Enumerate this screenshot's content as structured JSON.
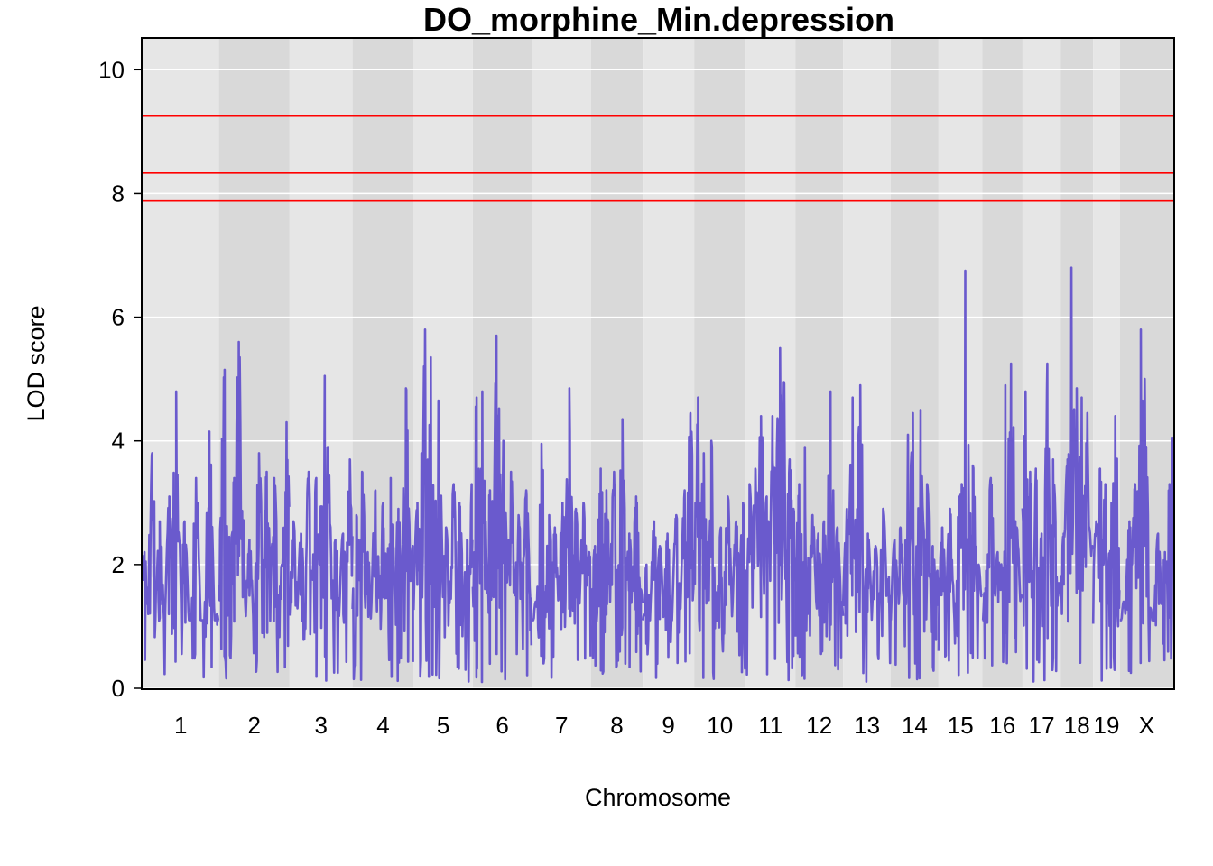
{
  "chart_data": {
    "type": "line",
    "title": "DO_morphine_Min.depression",
    "xlabel": "Chromosome",
    "ylabel": "LOD score",
    "ylim": [
      0,
      10.5
    ],
    "yticks": [
      0,
      2,
      4,
      6,
      8,
      10
    ],
    "grid": true,
    "thresholds": [
      9.25,
      8.33,
      7.88
    ],
    "colors": {
      "line": "#6a5acd",
      "threshold": "#ff0000",
      "band_light": "#e6e6e6",
      "band_dark": "#d9d9d9",
      "grid": "#ffffff"
    },
    "chromosomes": [
      {
        "label": "1",
        "start": 0,
        "end": 200,
        "peaks": [
          [
            5,
            2.2
          ],
          [
            15,
            1.2
          ],
          [
            25,
            3.8
          ],
          [
            45,
            2.7
          ],
          [
            70,
            3.1
          ],
          [
            88,
            4.8
          ],
          [
            110,
            2.7
          ],
          [
            140,
            3.4
          ],
          [
            175,
            4.15
          ],
          [
            195,
            1.2
          ]
        ]
      },
      {
        "label": "2",
        "start": 200,
        "end": 385,
        "peaks": [
          [
            15,
            5.15
          ],
          [
            40,
            3.4
          ],
          [
            52,
            5.6
          ],
          [
            80,
            2.4
          ],
          [
            105,
            3.8
          ],
          [
            125,
            3.5
          ],
          [
            145,
            3.4
          ],
          [
            165,
            2.0
          ],
          [
            177,
            4.3
          ]
        ]
      },
      {
        "label": "3",
        "start": 385,
        "end": 550,
        "peaks": [
          [
            10,
            2.7
          ],
          [
            30,
            2.5
          ],
          [
            50,
            3.5
          ],
          [
            70,
            3.4
          ],
          [
            92,
            5.05
          ],
          [
            100,
            3.9
          ],
          [
            120,
            2.4
          ],
          [
            140,
            2.5
          ],
          [
            158,
            3.7
          ]
        ]
      },
      {
        "label": "4",
        "start": 550,
        "end": 710,
        "peaks": [
          [
            10,
            2.8
          ],
          [
            25,
            3.5
          ],
          [
            40,
            2.2
          ],
          [
            60,
            3.2
          ],
          [
            80,
            3.0
          ],
          [
            100,
            3.4
          ],
          [
            120,
            2.9
          ],
          [
            140,
            4.85
          ],
          [
            158,
            2.3
          ]
        ]
      },
      {
        "label": "5",
        "start": 710,
        "end": 865,
        "peaks": [
          [
            10,
            3.0
          ],
          [
            30,
            5.8
          ],
          [
            45,
            5.35
          ],
          [
            65,
            4.65
          ],
          [
            85,
            2.6
          ],
          [
            105,
            3.3
          ],
          [
            120,
            3.0
          ],
          [
            140,
            2.4
          ],
          [
            152,
            3.3
          ]
        ]
      },
      {
        "label": "6",
        "start": 865,
        "end": 1020,
        "peaks": [
          [
            10,
            4.7
          ],
          [
            25,
            4.8
          ],
          [
            45,
            3.2
          ],
          [
            62,
            5.7
          ],
          [
            80,
            4.0
          ],
          [
            100,
            3.5
          ],
          [
            120,
            2.8
          ],
          [
            140,
            3.2
          ],
          [
            150,
            1.5
          ]
        ]
      },
      {
        "label": "7",
        "start": 1020,
        "end": 1175,
        "peaks": [
          [
            10,
            1.4
          ],
          [
            25,
            3.95
          ],
          [
            45,
            2.8
          ],
          [
            60,
            2.6
          ],
          [
            80,
            3.0
          ],
          [
            98,
            4.85
          ],
          [
            115,
            2.9
          ],
          [
            135,
            3.0
          ],
          [
            150,
            2.2
          ]
        ]
      },
      {
        "label": "8",
        "start": 1175,
        "end": 1310,
        "peaks": [
          [
            10,
            2.3
          ],
          [
            25,
            3.55
          ],
          [
            40,
            3.2
          ],
          [
            60,
            3.5
          ],
          [
            82,
            4.35
          ],
          [
            100,
            2.5
          ],
          [
            118,
            3.1
          ],
          [
            130,
            1.6
          ]
        ]
      },
      {
        "label": "9",
        "start": 1310,
        "end": 1445,
        "peaks": [
          [
            10,
            2.0
          ],
          [
            30,
            2.7
          ],
          [
            45,
            2.3
          ],
          [
            65,
            2.5
          ],
          [
            88,
            2.8
          ],
          [
            110,
            3.2
          ],
          [
            125,
            4.45
          ],
          [
            133,
            1.6
          ]
        ]
      },
      {
        "label": "10",
        "start": 1445,
        "end": 1580,
        "peaks": [
          [
            10,
            4.7
          ],
          [
            25,
            3.8
          ],
          [
            45,
            4.0
          ],
          [
            70,
            2.6
          ],
          [
            88,
            3.1
          ],
          [
            110,
            2.7
          ],
          [
            128,
            3.0
          ]
        ]
      },
      {
        "label": "11",
        "start": 1580,
        "end": 1710,
        "peaks": [
          [
            10,
            3.3
          ],
          [
            25,
            3.55
          ],
          [
            40,
            4.4
          ],
          [
            55,
            3.1
          ],
          [
            70,
            4.4
          ],
          [
            90,
            5.5
          ],
          [
            100,
            4.95
          ],
          [
            115,
            3.7
          ],
          [
            125,
            2.9
          ]
        ]
      },
      {
        "label": "12",
        "start": 1710,
        "end": 1835,
        "peaks": [
          [
            10,
            3.3
          ],
          [
            25,
            3.9
          ],
          [
            45,
            2.8
          ],
          [
            60,
            2.5
          ],
          [
            75,
            2.7
          ],
          [
            92,
            4.8
          ],
          [
            110,
            2.6
          ],
          [
            120,
            1.4
          ]
        ]
      },
      {
        "label": "13",
        "start": 1835,
        "end": 1960,
        "peaks": [
          [
            10,
            2.9
          ],
          [
            25,
            4.7
          ],
          [
            45,
            4.9
          ],
          [
            65,
            2.5
          ],
          [
            85,
            2.3
          ],
          [
            105,
            2.9
          ],
          [
            120,
            1.8
          ]
        ]
      },
      {
        "label": "14",
        "start": 1960,
        "end": 2085,
        "peaks": [
          [
            10,
            2.4
          ],
          [
            25,
            2.6
          ],
          [
            45,
            4.1
          ],
          [
            58,
            4.45
          ],
          [
            78,
            4.5
          ],
          [
            95,
            3.3
          ],
          [
            110,
            2.3
          ],
          [
            122,
            1.9
          ]
        ]
      },
      {
        "label": "15",
        "start": 2085,
        "end": 2200,
        "peaks": [
          [
            10,
            2.6
          ],
          [
            30,
            2.9
          ],
          [
            55,
            3.1
          ],
          [
            70,
            6.75
          ],
          [
            90,
            3.6
          ],
          [
            105,
            2.0
          ],
          [
            113,
            1.5
          ]
        ]
      },
      {
        "label": "16",
        "start": 2200,
        "end": 2305,
        "peaks": [
          [
            10,
            1.9
          ],
          [
            22,
            3.4
          ],
          [
            40,
            2.2
          ],
          [
            60,
            4.9
          ],
          [
            75,
            5.25
          ],
          [
            90,
            2.6
          ],
          [
            102,
            1.5
          ]
        ]
      },
      {
        "label": "17",
        "start": 2305,
        "end": 2405,
        "peaks": [
          [
            8,
            4.8
          ],
          [
            20,
            3.5
          ],
          [
            35,
            3.55
          ],
          [
            50,
            2.5
          ],
          [
            65,
            5.25
          ],
          [
            80,
            3.7
          ],
          [
            95,
            1.7
          ]
        ]
      },
      {
        "label": "18",
        "start": 2405,
        "end": 2490,
        "peaks": [
          [
            8,
            2.5
          ],
          [
            18,
            3.7
          ],
          [
            28,
            6.8
          ],
          [
            42,
            4.85
          ],
          [
            55,
            4.7
          ],
          [
            70,
            4.45
          ],
          [
            83,
            2.3
          ]
        ]
      },
      {
        "label": "19",
        "start": 2490,
        "end": 2560,
        "peaks": [
          [
            8,
            2.7
          ],
          [
            18,
            3.55
          ],
          [
            32,
            3.3
          ],
          [
            48,
            3.0
          ],
          [
            58,
            4.4
          ],
          [
            68,
            1.3
          ]
        ]
      },
      {
        "label": "X",
        "start": 2560,
        "end": 2700,
        "peaks": [
          [
            10,
            1.4
          ],
          [
            25,
            2.7
          ],
          [
            40,
            3.3
          ],
          [
            55,
            5.8
          ],
          [
            65,
            5.0
          ],
          [
            80,
            1.3
          ],
          [
            100,
            2.5
          ],
          [
            118,
            2.2
          ],
          [
            130,
            3.3
          ],
          [
            138,
            4.05
          ]
        ]
      }
    ]
  }
}
